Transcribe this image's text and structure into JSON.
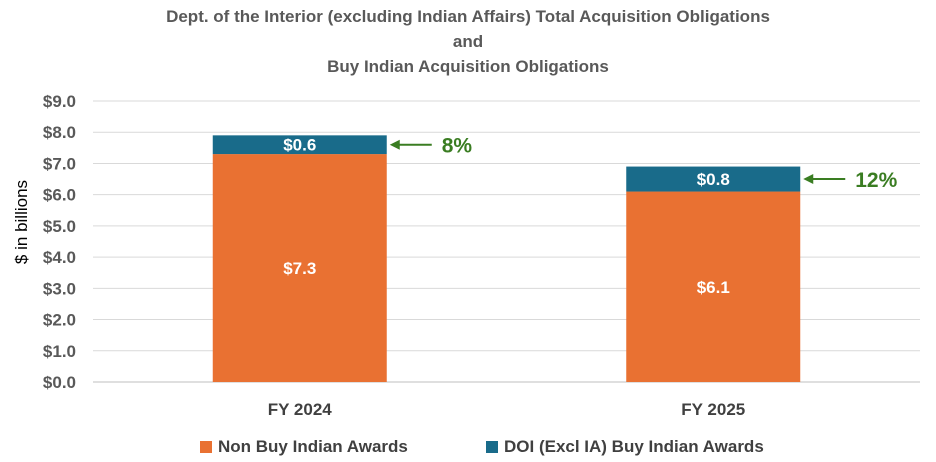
{
  "chart_data": {
    "type": "bar",
    "stacked": true,
    "title_lines": [
      "Dept. of the Interior (excluding Indian Affairs) Total Acquisition Obligations",
      "and",
      "Buy Indian Acquisition Obligations"
    ],
    "ylabel": "$ in billions",
    "xlabel": "",
    "ylim": [
      0,
      9
    ],
    "y_ticks": [
      "$0.0",
      "$1.0",
      "$2.0",
      "$3.0",
      "$4.0",
      "$5.0",
      "$6.0",
      "$7.0",
      "$8.0",
      "$9.0"
    ],
    "categories": [
      "FY 2024",
      "FY 2025"
    ],
    "series": [
      {
        "name": "Non Buy Indian Awards",
        "color": "#E97132",
        "values": [
          7.3,
          6.1
        ],
        "labels": [
          "$7.3",
          "$6.1"
        ]
      },
      {
        "name": "DOI (Excl IA) Buy Indian Awards",
        "color": "#196B8A",
        "values": [
          0.6,
          0.8
        ],
        "labels": [
          "$0.6",
          "$0.8"
        ]
      }
    ],
    "annotations": [
      {
        "category": "FY 2024",
        "text": "8%",
        "color": "#3A7D22"
      },
      {
        "category": "FY 2025",
        "text": "12%",
        "color": "#3A7D22"
      }
    ],
    "grid": true,
    "legend_position": "bottom"
  }
}
